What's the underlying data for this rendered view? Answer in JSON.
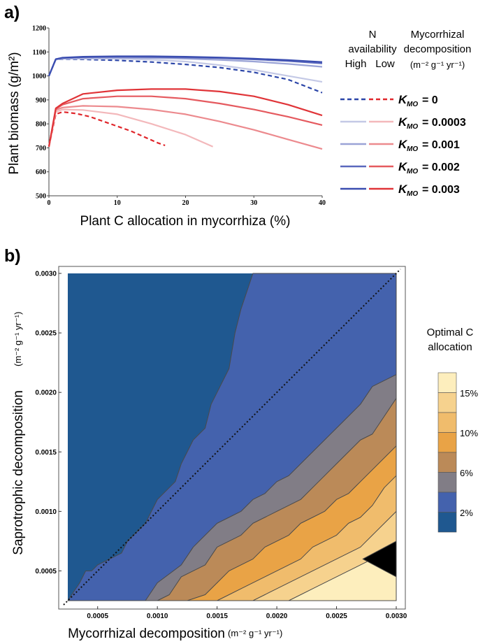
{
  "panel_a": {
    "label": "a)",
    "xlabel": "Plant C allocation in mycorrhiza (%)",
    "ylabel": "Plant biomass (g/m²)",
    "legend": {
      "header_n": [
        "N",
        "availability"
      ],
      "header_n_high": "High",
      "header_n_low": "Low",
      "header_m": [
        "Mycorrhizal",
        "decomposition"
      ],
      "header_units": "(m⁻² g⁻¹ yr⁻¹)",
      "k_prefix": "K",
      "k_sub": "MO",
      "entries": [
        "= 0",
        "= 0.0003",
        "= 0.001",
        "= 0.002",
        "= 0.003"
      ]
    }
  },
  "panel_b": {
    "label": "b)",
    "xlabel": "Mycorrhizal decomposition",
    "xunits": "(m⁻² g⁻¹ yr⁻¹)",
    "ylabel": "Saprotrophic decomposition",
    "yunits": "(m⁻² g⁻¹ yr⁻¹)",
    "legend_title": [
      "Optimal C",
      "allocation"
    ],
    "legend_labels": [
      "15%",
      "10%",
      "6%",
      "2%"
    ]
  },
  "colors": {
    "high": [
      "#2b45a8",
      "#c4c9e6",
      "#9aa3d6",
      "#5a68bd",
      "#3a4db0"
    ],
    "low": [
      "#e0262b",
      "#f3b8bb",
      "#ec8a8e",
      "#e55a5f",
      "#e03438"
    ],
    "bands": [
      "#1f5890",
      "#4462ad",
      "#817d86",
      "#bb8a58",
      "#e9a346",
      "#f0bc6c",
      "#f6d28e",
      "#fdeebd"
    ]
  },
  "chart_data": [
    {
      "type": "line",
      "title": "",
      "xlabel": "Plant C allocation in mycorrhiza (%)",
      "ylabel": "Plant biomass (g/m²)",
      "xlim": [
        0,
        40
      ],
      "ylim": [
        500,
        1200
      ],
      "xticks": [
        0,
        10,
        20,
        30,
        40
      ],
      "yticks": [
        500,
        600,
        700,
        800,
        900,
        1000,
        1100,
        1200
      ],
      "legend_position": "right",
      "series": [
        {
          "name": "High, K_MO = 0",
          "style": "dashed",
          "x": [
            0,
            1,
            2,
            5,
            10,
            15,
            20,
            25,
            30,
            35,
            40
          ],
          "y": [
            1000,
            1068,
            1070,
            1069,
            1065,
            1058,
            1048,
            1035,
            1015,
            985,
            930
          ]
        },
        {
          "name": "High, K_MO = 0.0003",
          "x": [
            0,
            1,
            2,
            5,
            10,
            15,
            20,
            25,
            30,
            35,
            40
          ],
          "y": [
            1000,
            1068,
            1071,
            1072,
            1072,
            1068,
            1060,
            1045,
            1025,
            1000,
            975
          ]
        },
        {
          "name": "High, K_MO = 0.001",
          "x": [
            0,
            1,
            2,
            5,
            10,
            15,
            20,
            25,
            30,
            35,
            40
          ],
          "y": [
            1000,
            1069,
            1073,
            1075,
            1076,
            1075,
            1072,
            1067,
            1060,
            1050,
            1038
          ]
        },
        {
          "name": "High, K_MO = 0.002",
          "x": [
            0,
            1,
            2,
            5,
            10,
            15,
            20,
            25,
            30,
            35,
            40
          ],
          "y": [
            1000,
            1070,
            1075,
            1078,
            1080,
            1079,
            1077,
            1074,
            1069,
            1062,
            1052
          ]
        },
        {
          "name": "High, K_MO = 0.003",
          "x": [
            0,
            1,
            2,
            5,
            10,
            15,
            20,
            25,
            30,
            35,
            40
          ],
          "y": [
            1000,
            1070,
            1076,
            1080,
            1082,
            1082,
            1080,
            1077,
            1072,
            1066,
            1058
          ]
        },
        {
          "name": "Low, K_MO = 0",
          "style": "dashed",
          "x": [
            0,
            1,
            2,
            4,
            6,
            8,
            10,
            12,
            14,
            16,
            17
          ],
          "y": [
            705,
            840,
            850,
            843,
            830,
            810,
            790,
            770,
            745,
            720,
            710
          ]
        },
        {
          "name": "Low, K_MO = 0.0003",
          "x": [
            0,
            1,
            2,
            5,
            10,
            15,
            20,
            24
          ],
          "y": [
            705,
            850,
            860,
            858,
            840,
            800,
            755,
            705
          ]
        },
        {
          "name": "Low, K_MO = 0.001",
          "x": [
            0,
            1,
            2,
            5,
            10,
            15,
            20,
            25,
            30,
            35,
            40
          ],
          "y": [
            705,
            858,
            868,
            875,
            872,
            860,
            840,
            810,
            775,
            735,
            695
          ]
        },
        {
          "name": "Low, K_MO = 0.002",
          "x": [
            0,
            1,
            2,
            5,
            10,
            15,
            20,
            25,
            30,
            35,
            40
          ],
          "y": [
            705,
            862,
            880,
            905,
            915,
            915,
            905,
            885,
            860,
            830,
            795
          ]
        },
        {
          "name": "Low, K_MO = 0.003",
          "x": [
            0,
            1,
            2,
            5,
            10,
            15,
            20,
            25,
            30,
            35,
            40
          ],
          "y": [
            705,
            865,
            885,
            925,
            940,
            945,
            945,
            935,
            915,
            880,
            835
          ]
        }
      ]
    },
    {
      "type": "heatmap",
      "title": "",
      "xlabel": "Mycorrhizal decomposition (m⁻² g⁻¹ yr⁻¹)",
      "ylabel": "Saprotrophic decomposition (m⁻² g⁻¹ yr⁻¹)",
      "xlim": [
        0.00025,
        0.003
      ],
      "ylim": [
        0.00025,
        0.003
      ],
      "xticks": [
        0.0005,
        0.001,
        0.0015,
        0.002,
        0.0025,
        0.003
      ],
      "xtick_labels": [
        "0.0005",
        "0.0010",
        "0.0015",
        "0.0020",
        "0.0025",
        "0.0030"
      ],
      "yticks": [
        0.0005,
        0.001,
        0.0015,
        0.002,
        0.0025,
        0.003
      ],
      "ytick_labels": [
        "0.0005",
        "0.0010",
        "0.0015",
        "0.0020",
        "0.0025",
        "0.0030"
      ],
      "diagonal": "1:1 dotted line",
      "levels": [
        "2%",
        "6%",
        "10%",
        "15%"
      ],
      "contours": [
        {
          "level": 1,
          "x": [
            0.00025,
            0.00035,
            0.0004,
            0.00045,
            0.0005,
            0.0006,
            0.0007,
            0.00075,
            0.0008,
            0.0009,
            0.00095,
            0.001,
            0.0011,
            0.00115,
            0.0012,
            0.00125,
            0.0013,
            0.0014,
            0.00145,
            0.0015,
            0.0016,
            0.00165,
            0.0017,
            0.0018
          ],
          "y": [
            0.00025,
            0.0004,
            0.0005,
            0.0005,
            0.00055,
            0.0006,
            0.00065,
            0.00075,
            0.0008,
            0.0009,
            0.001,
            0.0011,
            0.0012,
            0.00125,
            0.0014,
            0.0015,
            0.0016,
            0.0017,
            0.0019,
            0.002,
            0.0022,
            0.0025,
            0.0027,
            0.003
          ]
        },
        {
          "level": 2,
          "x": [
            0.0009,
            0.001,
            0.0012,
            0.0013,
            0.0014,
            0.0015,
            0.0016,
            0.0017,
            0.0018,
            0.0019,
            0.002,
            0.0021,
            0.0022,
            0.0023,
            0.0024,
            0.0025,
            0.0026,
            0.0027,
            0.0028,
            0.003
          ],
          "y": [
            0.00025,
            0.0004,
            0.00055,
            0.0007,
            0.0008,
            0.0009,
            0.00095,
            0.001,
            0.0011,
            0.00115,
            0.00125,
            0.0013,
            0.0014,
            0.0015,
            0.0016,
            0.0017,
            0.0018,
            0.0019,
            0.00205,
            0.00215
          ]
        },
        {
          "level": 3,
          "x": [
            0.001,
            0.0011,
            0.0012,
            0.0014,
            0.0015,
            0.0016,
            0.0017,
            0.0018,
            0.0019,
            0.002,
            0.0021,
            0.0022,
            0.0023,
            0.0024,
            0.0025,
            0.0026,
            0.0027,
            0.0028,
            0.0029,
            0.003
          ],
          "y": [
            0.00025,
            0.0003,
            0.00045,
            0.00055,
            0.0007,
            0.00075,
            0.0008,
            0.0009,
            0.00095,
            0.001,
            0.00105,
            0.0011,
            0.0012,
            0.0013,
            0.0014,
            0.0015,
            0.0016,
            0.00165,
            0.0018,
            0.00195
          ]
        },
        {
          "level": 4,
          "x": [
            0.00125,
            0.0014,
            0.0015,
            0.0016,
            0.0017,
            0.0018,
            0.0019,
            0.002,
            0.0021,
            0.0022,
            0.0023,
            0.0024,
            0.0025,
            0.0026,
            0.0027,
            0.0028,
            0.003
          ],
          "y": [
            0.00025,
            0.0003,
            0.0004,
            0.0005,
            0.00055,
            0.0006,
            0.0007,
            0.00075,
            0.0008,
            0.0009,
            0.00095,
            0.001,
            0.0011,
            0.00115,
            0.00125,
            0.00135,
            0.00155
          ]
        },
        {
          "level": 5,
          "x": [
            0.0015,
            0.0016,
            0.0017,
            0.0018,
            0.0019,
            0.002,
            0.0021,
            0.0022,
            0.0023,
            0.0024,
            0.0025,
            0.0026,
            0.0027,
            0.0028,
            0.0029,
            0.003
          ],
          "y": [
            0.00025,
            0.0003,
            0.00035,
            0.0004,
            0.00045,
            0.0005,
            0.00055,
            0.0006,
            0.0007,
            0.00075,
            0.0008,
            0.0009,
            0.00095,
            0.00105,
            0.0012,
            0.0013
          ]
        },
        {
          "level": 6,
          "x": [
            0.0018,
            0.0019,
            0.002,
            0.0021,
            0.0022,
            0.0023,
            0.0024,
            0.0025,
            0.0026,
            0.0027,
            0.0028,
            0.0029,
            0.003
          ],
          "y": [
            0.00025,
            0.0003,
            0.00035,
            0.0004,
            0.00045,
            0.0005,
            0.00055,
            0.0006,
            0.00065,
            0.0007,
            0.0008,
            0.0009,
            0.001
          ]
        },
        {
          "level": 7,
          "x": [
            0.0021,
            0.0022,
            0.0023,
            0.0024,
            0.0025,
            0.0026,
            0.0027,
            0.0028,
            0.003
          ],
          "y": [
            0.00025,
            0.0003,
            0.00035,
            0.0004,
            0.00045,
            0.0005,
            0.00055,
            0.0006,
            0.00075
          ]
        },
        {
          "level": 8,
          "x": [
            0.00272,
            0.003,
            0.003
          ],
          "y": [
            0.0006,
            0.00075,
            0.00045
          ]
        }
      ]
    }
  ]
}
